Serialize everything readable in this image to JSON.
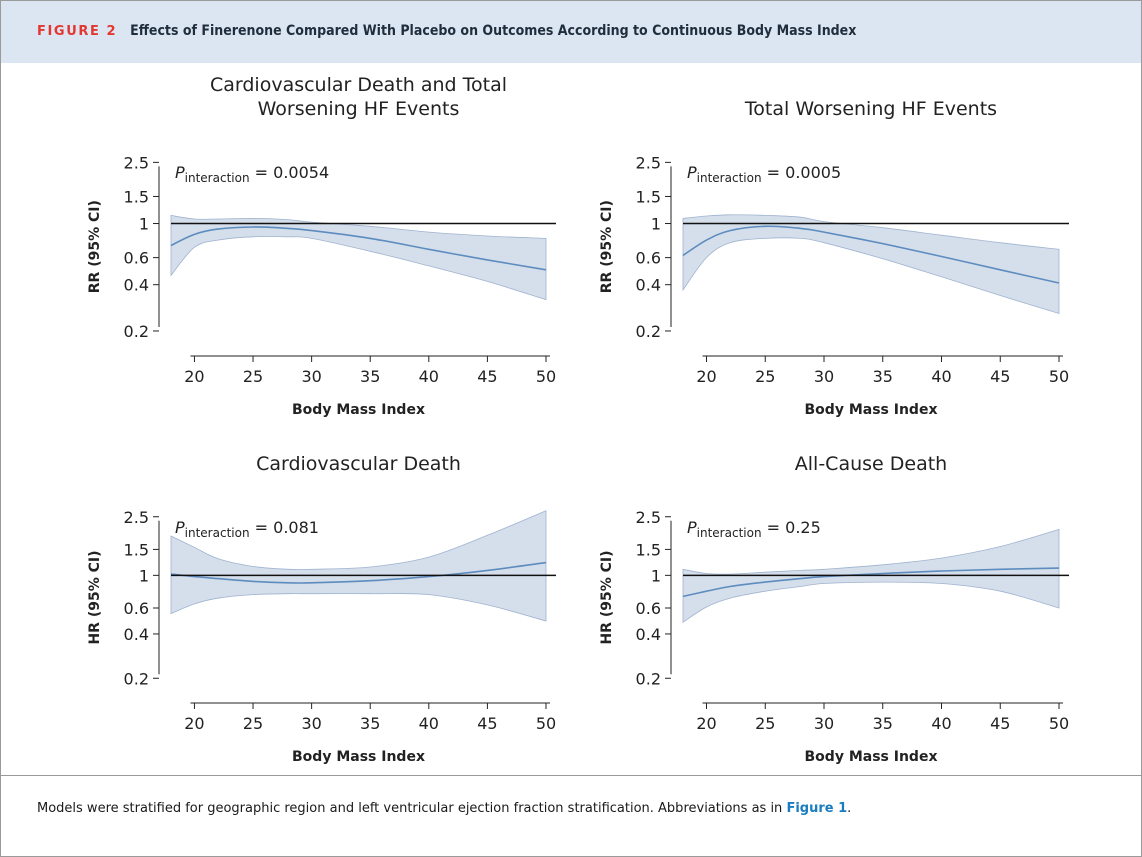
{
  "figure": {
    "label": "FIGURE 2",
    "title": "Effects of Finerenone Compared With Placebo on Outcomes According to Continuous Body Mass Index"
  },
  "footer": {
    "text": "Models were stratified for geographic region and left ventricular ejection fraction stratification. Abbreviations as in ",
    "link": "Figure 1",
    "end": "."
  },
  "colors": {
    "band": "#d5deeb",
    "band_edge": "#9fb3cf",
    "line": "#5d8cbf",
    "ref": "#111111",
    "header_bg": "#dbe6f2",
    "label_red": "#e2362f",
    "link": "#1a7cc2"
  },
  "chart_data": [
    {
      "type": "line",
      "title": [
        "Cardiovascular Death and Total",
        "Worsening HF Events"
      ],
      "xlabel": "Body Mass Index",
      "ylabel": "RR (95% CI)",
      "y_scale": "log",
      "xlim": [
        18,
        50
      ],
      "xticks": [
        20,
        25,
        30,
        35,
        40,
        45,
        50
      ],
      "yticks": [
        0.2,
        0.4,
        0.6,
        1,
        1.5,
        2.5
      ],
      "ylim": [
        0.18,
        3.1
      ],
      "reference_line": 1,
      "p_interaction": "0.0054",
      "x": [
        18,
        20,
        22,
        25,
        28,
        30,
        35,
        40,
        45,
        50
      ],
      "estimate": [
        0.72,
        0.85,
        0.92,
        0.95,
        0.93,
        0.9,
        0.8,
        0.68,
        0.58,
        0.5
      ],
      "lower": [
        0.46,
        0.7,
        0.78,
        0.82,
        0.82,
        0.8,
        0.66,
        0.53,
        0.42,
        0.32
      ],
      "upper": [
        1.13,
        1.07,
        1.07,
        1.08,
        1.06,
        1.02,
        0.96,
        0.88,
        0.83,
        0.8
      ]
    },
    {
      "type": "line",
      "title": [
        "Total Worsening HF Events"
      ],
      "xlabel": "Body Mass Index",
      "ylabel": "RR (95% CI)",
      "y_scale": "log",
      "xlim": [
        18,
        50
      ],
      "xticks": [
        20,
        25,
        30,
        35,
        40,
        45,
        50
      ],
      "yticks": [
        0.2,
        0.4,
        0.6,
        1,
        1.5,
        2.5
      ],
      "ylim": [
        0.18,
        3.1
      ],
      "reference_line": 1,
      "p_interaction": "0.0005",
      "x": [
        18,
        20,
        22,
        25,
        28,
        30,
        35,
        40,
        45,
        50
      ],
      "estimate": [
        0.62,
        0.78,
        0.9,
        0.96,
        0.93,
        0.88,
        0.74,
        0.61,
        0.5,
        0.41
      ],
      "lower": [
        0.37,
        0.6,
        0.75,
        0.8,
        0.8,
        0.75,
        0.59,
        0.45,
        0.34,
        0.26
      ],
      "upper": [
        1.08,
        1.12,
        1.14,
        1.13,
        1.1,
        1.03,
        0.94,
        0.84,
        0.75,
        0.68
      ]
    },
    {
      "type": "line",
      "title": [
        "Cardiovascular Death"
      ],
      "xlabel": "Body Mass Index",
      "ylabel": "HR (95% CI)",
      "y_scale": "log",
      "xlim": [
        18,
        50
      ],
      "xticks": [
        20,
        25,
        30,
        35,
        40,
        45,
        50
      ],
      "yticks": [
        0.2,
        0.4,
        0.6,
        1,
        1.5,
        2.5
      ],
      "ylim": [
        0.18,
        3.1
      ],
      "reference_line": 1,
      "p_interaction": "0.081",
      "x": [
        18,
        20,
        22,
        25,
        28,
        30,
        35,
        40,
        45,
        50
      ],
      "estimate": [
        1.02,
        0.98,
        0.95,
        0.91,
        0.89,
        0.89,
        0.92,
        0.98,
        1.08,
        1.22
      ],
      "lower": [
        0.55,
        0.64,
        0.7,
        0.74,
        0.75,
        0.75,
        0.75,
        0.74,
        0.63,
        0.49
      ],
      "upper": [
        1.85,
        1.55,
        1.3,
        1.15,
        1.1,
        1.1,
        1.14,
        1.33,
        1.87,
        2.75
      ]
    },
    {
      "type": "line",
      "title": [
        "All-Cause Death"
      ],
      "xlabel": "Body Mass Index",
      "ylabel": "HR (95% CI)",
      "y_scale": "log",
      "xlim": [
        18,
        50
      ],
      "xticks": [
        20,
        25,
        30,
        35,
        40,
        45,
        50
      ],
      "yticks": [
        0.2,
        0.4,
        0.6,
        1,
        1.5,
        2.5
      ],
      "ylim": [
        0.18,
        3.1
      ],
      "reference_line": 1,
      "p_interaction": "0.25",
      "x": [
        18,
        20,
        22,
        25,
        28,
        30,
        35,
        40,
        45,
        50
      ],
      "estimate": [
        0.72,
        0.78,
        0.84,
        0.9,
        0.95,
        0.98,
        1.03,
        1.07,
        1.1,
        1.12
      ],
      "lower": [
        0.48,
        0.61,
        0.7,
        0.78,
        0.84,
        0.88,
        0.9,
        0.88,
        0.78,
        0.6
      ],
      "upper": [
        1.1,
        1.03,
        1.02,
        1.05,
        1.08,
        1.1,
        1.18,
        1.31,
        1.57,
        2.05
      ]
    }
  ]
}
